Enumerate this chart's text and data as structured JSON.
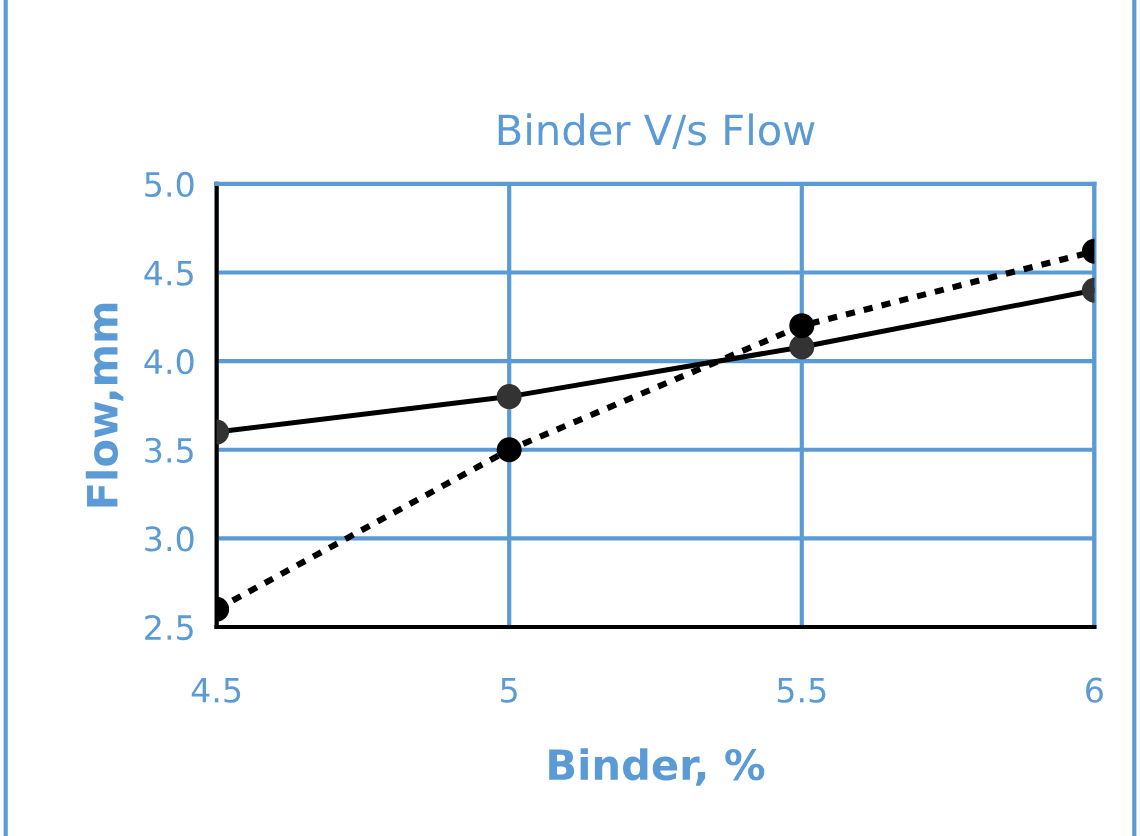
{
  "chart_data": {
    "type": "line",
    "title": "Binder V/s Flow",
    "xlabel": "Binder, %",
    "ylabel": "Flow,mm",
    "x": [
      4.5,
      5,
      5.5,
      6
    ],
    "series": [
      {
        "color": "#000000",
        "values": [
          3.6,
          3.8,
          4.08,
          4.4
        ],
        "line_style": "solid",
        "marker": "circle"
      },
      {
        "color": "#000000",
        "values": [
          2.6,
          3.5,
          4.2,
          4.62
        ],
        "line_style": "dotted",
        "marker": "circle"
      }
    ],
    "xlim": [
      4.5,
      6
    ],
    "xticks": [
      4.5,
      5,
      5.5,
      6
    ],
    "ylim": [
      2.5,
      5.0
    ],
    "yticks": [
      {
        "value": 2.5,
        "label": "2.5"
      },
      {
        "value": 3.0,
        "label": "3.0"
      },
      {
        "value": 3.5,
        "label": "3.5"
      },
      {
        "value": 4.0,
        "label": "4.0"
      },
      {
        "value": 4.5,
        "label": "4.5"
      },
      {
        "value": 5.0,
        "label": "5.0"
      }
    ],
    "grid": true,
    "legend": false
  }
}
